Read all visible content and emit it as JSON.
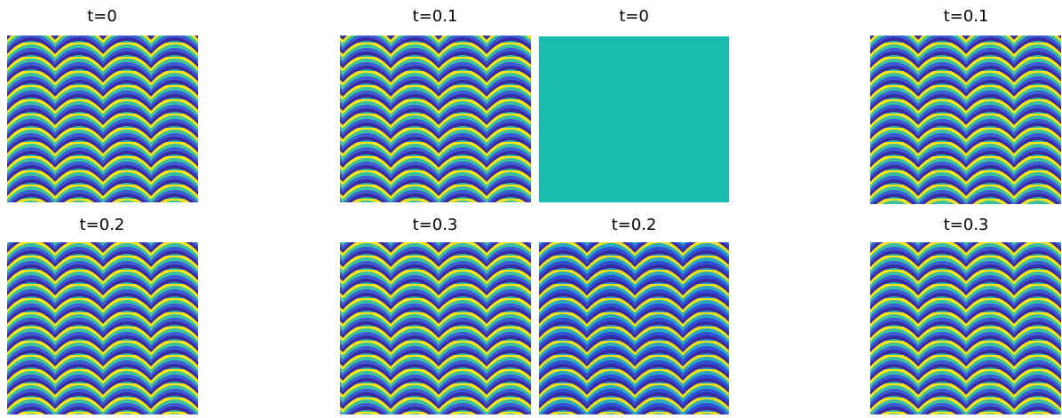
{
  "panels": [
    {
      "title": "t=0"
    },
    {
      "title": "t=0.1"
    },
    {
      "title": "t=0"
    },
    {
      "title": "t=0.1"
    },
    {
      "title": "t=0.2"
    },
    {
      "title": "t=0.3"
    },
    {
      "title": "t=0.2"
    },
    {
      "title": "t=0.3"
    }
  ]
}
